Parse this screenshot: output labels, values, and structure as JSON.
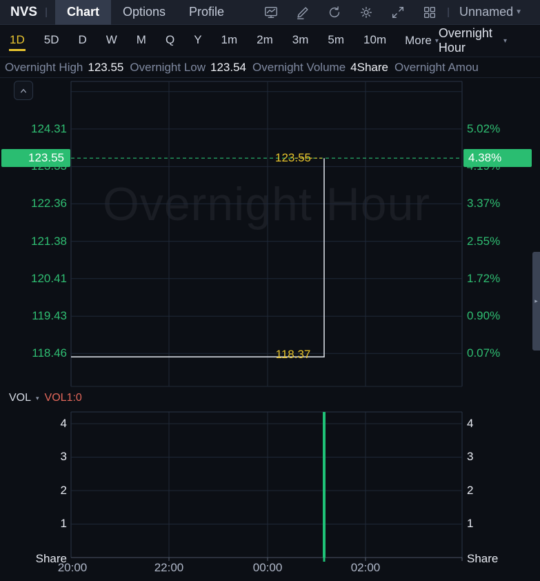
{
  "colors": {
    "accent_green": "#2abd71",
    "axis_green": "#2fbe72",
    "marker_yellow": "#e7c32c",
    "vol_red": "#e4685b",
    "price_line": "#d6dae1",
    "volume_bar_green": "#1fc277"
  },
  "topbar": {
    "symbol": "NVS",
    "tabs": [
      {
        "label": "Chart",
        "active": true
      },
      {
        "label": "Options",
        "active": false
      },
      {
        "label": "Profile",
        "active": false
      }
    ],
    "icons": [
      {
        "name": "chart-monitor-icon"
      },
      {
        "name": "draw-icon"
      },
      {
        "name": "refresh-icon"
      },
      {
        "name": "settings-icon"
      },
      {
        "name": "fullscreen-icon"
      },
      {
        "name": "layout-grid-icon"
      }
    ],
    "workspace_label": "Unnamed"
  },
  "timeframe_bar": {
    "items": [
      {
        "label": "1D",
        "active": true
      },
      {
        "label": "5D",
        "active": false
      },
      {
        "label": "D",
        "active": false
      },
      {
        "label": "W",
        "active": false
      },
      {
        "label": "M",
        "active": false
      },
      {
        "label": "Q",
        "active": false
      },
      {
        "label": "Y",
        "active": false
      },
      {
        "label": "1m",
        "active": false
      },
      {
        "label": "2m",
        "active": false
      },
      {
        "label": "3m",
        "active": false
      },
      {
        "label": "5m",
        "active": false
      },
      {
        "label": "10m",
        "active": false
      }
    ],
    "more_label": "More",
    "session_label": "Overnight Hour"
  },
  "info_bar": {
    "fields": [
      {
        "label": "Overnight High",
        "value": "123.55"
      },
      {
        "label": "Overnight Low",
        "value": "123.54"
      },
      {
        "label": "Overnight Volume",
        "value": "4Share"
      },
      {
        "label": "Overnight Amou",
        "value": ""
      }
    ]
  },
  "chart_data": [
    {
      "type": "line",
      "name": "price",
      "watermark": "Overnight Hour",
      "y_domain": [
        117.6,
        125.55
      ],
      "price_ticks": [
        {
          "value": 125.285,
          "label": "",
          "pct": ""
        },
        {
          "value": 124.31,
          "label": "124.31",
          "pct": "5.02%"
        },
        {
          "value": 123.33,
          "label": "123.33",
          "pct": "4.19%"
        },
        {
          "value": 122.36,
          "label": "122.36",
          "pct": "3.37%"
        },
        {
          "value": 121.38,
          "label": "121.38",
          "pct": "2.55%"
        },
        {
          "value": 120.41,
          "label": "120.41",
          "pct": "1.72%"
        },
        {
          "value": 119.43,
          "label": "119.43",
          "pct": "0.90%"
        },
        {
          "value": 118.46,
          "label": "118.46",
          "pct": "0.07%"
        }
      ],
      "current": {
        "value": 123.55,
        "price_label": "123.55",
        "pct_label": "4.38%"
      },
      "high_marker": {
        "value": 123.55,
        "label": "123.55"
      },
      "low_marker": {
        "value": 118.37,
        "label": "118.37"
      },
      "series_points": [
        {
          "x": 0.0,
          "y": 118.37
        },
        {
          "x": 0.6472,
          "y": 118.37
        },
        {
          "x": 0.6472,
          "y": 123.55
        }
      ],
      "x_ticks": [
        {
          "label": "20:00",
          "x": 0.0035
        },
        {
          "label": "22:00",
          "x": 0.2504
        },
        {
          "label": "00:00",
          "x": 0.5027
        },
        {
          "label": "02:00",
          "x": 0.7531
        }
      ],
      "highlight_x": 0.6472
    },
    {
      "type": "bar",
      "name": "volume",
      "indicator_label": "VOL",
      "series_label": "VOL1:0",
      "unit": "Share",
      "ylim": [
        0,
        4.35
      ],
      "y_ticks": [
        1,
        2,
        3,
        4
      ],
      "bars": [
        {
          "x": 0.6472,
          "value": 4.35
        }
      ]
    }
  ]
}
